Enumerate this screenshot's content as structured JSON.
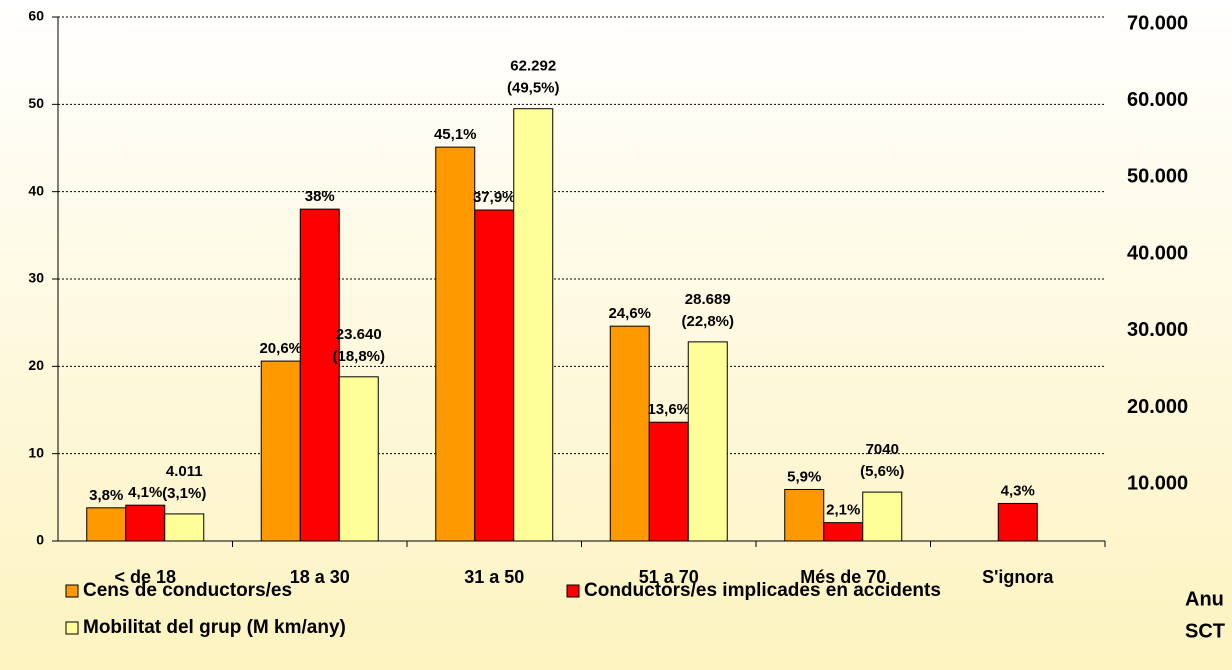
{
  "chart_data": {
    "type": "bar",
    "categories": [
      "< de 18",
      "18 a 30",
      "31 a 50",
      "51 a 70",
      "Més de 70",
      "S'ignora"
    ],
    "series": [
      {
        "name": "Cens de conductors/es",
        "color": "#ff9900",
        "values": [
          3.8,
          20.6,
          45.1,
          24.6,
          5.9,
          null
        ],
        "value_labels": [
          "3,8%",
          "20,6%",
          "45,1%",
          "24,6%",
          "5,9%",
          null
        ]
      },
      {
        "name": "Conductors/es implicades en accidents",
        "color": "#ff0000",
        "values": [
          4.1,
          38,
          37.9,
          13.6,
          2.1,
          4.3
        ],
        "value_labels": [
          "4,1%",
          "38%",
          "37,9%",
          "13,6%",
          "2,1%",
          "4,3%"
        ]
      },
      {
        "name": "Mobilitat del grup (M km/any)",
        "color": "#ffff99",
        "values": [
          3.1,
          18.8,
          49.5,
          22.8,
          5.6,
          null
        ],
        "value_labels": [
          "(3,1%)",
          "(18,8%)",
          "(49,5%)",
          "(22,8%)",
          "(5,6%)",
          null
        ],
        "annotations": [
          "4.011",
          "23.640",
          "62.292",
          "28.689",
          "7040",
          null
        ]
      }
    ],
    "ylim": [
      0,
      60
    ],
    "yticks": [
      0,
      10,
      20,
      30,
      40,
      50,
      60
    ],
    "y2lim": [
      0,
      70000
    ],
    "y2ticks": [
      {
        "value": 10000,
        "label": "10.000"
      },
      {
        "value": 20000,
        "label": "20.000"
      },
      {
        "value": 30000,
        "label": "30.000"
      },
      {
        "value": 40000,
        "label": "40.000"
      },
      {
        "value": 50000,
        "label": "50.000"
      },
      {
        "value": 60000,
        "label": "60.000"
      },
      {
        "value": 70000,
        "label": "70.000"
      }
    ],
    "grid": true,
    "notes": [
      "Anu",
      "SCT"
    ]
  }
}
